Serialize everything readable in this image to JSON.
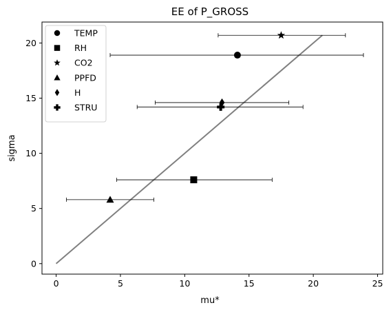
{
  "chart_data": {
    "type": "scatter",
    "title": "EE of P_GROSS",
    "xlabel": "mu*",
    "ylabel": "sigma",
    "xlim": [
      -1.1,
      25.4
    ],
    "ylim": [
      -0.95,
      21.9
    ],
    "xticks": [
      0,
      5,
      10,
      15,
      20,
      25
    ],
    "yticks": [
      0,
      5,
      10,
      15,
      20
    ],
    "grid": false,
    "legend_position": "top-left",
    "series": [
      {
        "name": "TEMP",
        "marker": "circle",
        "x": 14.1,
        "y": 18.9,
        "xerr": [
          4.2,
          23.9
        ]
      },
      {
        "name": "RH",
        "marker": "square",
        "x": 10.7,
        "y": 7.6,
        "xerr": [
          4.7,
          16.8
        ]
      },
      {
        "name": "CO2",
        "marker": "star",
        "x": 17.5,
        "y": 20.7,
        "xerr": [
          12.6,
          22.5
        ]
      },
      {
        "name": "PPFD",
        "marker": "triangle",
        "x": 4.2,
        "y": 5.8,
        "xerr": [
          0.8,
          7.6
        ]
      },
      {
        "name": "H",
        "marker": "diamond",
        "x": 12.9,
        "y": 14.6,
        "xerr": [
          7.7,
          18.1
        ]
      },
      {
        "name": "STRU",
        "marker": "plus",
        "x": 12.8,
        "y": 14.2,
        "xerr": [
          6.3,
          19.2
        ]
      }
    ],
    "reference_line": {
      "x": [
        0,
        20.7
      ],
      "y": [
        0,
        20.7
      ],
      "color": "#808080"
    }
  }
}
